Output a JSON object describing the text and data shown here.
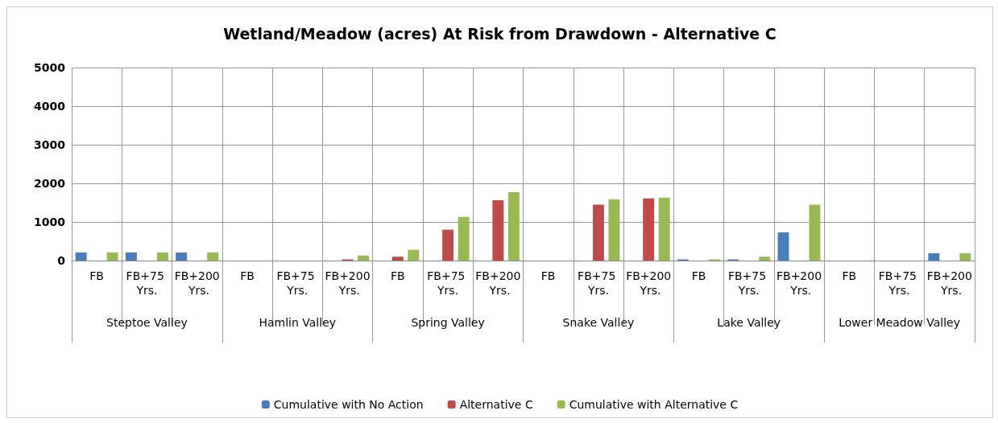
{
  "chart_data": {
    "type": "bar",
    "title": "Wetland/Meadow (acres) At Risk from Drawdown - Alternative C",
    "categories": [
      "FB",
      "FB+75 Yrs.",
      "FB+200 Yrs.",
      "FB",
      "FB+75 Yrs.",
      "FB+200 Yrs.",
      "FB",
      "FB+75 Yrs.",
      "FB+200 Yrs.",
      "FB",
      "FB+75 Yrs.",
      "FB+200 Yrs.",
      "FB",
      "FB+75 Yrs.",
      "FB+200 Yrs.",
      "FB",
      "FB+75 Yrs.",
      "FB+200 Yrs."
    ],
    "annotations": [
      "Steptoe Valley",
      "Hamlin Valley",
      "Spring Valley",
      "Snake Valley",
      "Lake Valley",
      "Lower Meadow Valley"
    ],
    "series": [
      {
        "name": "Cumulative with No Action",
        "color": "#4a7ebb",
        "values": [
          210,
          210,
          210,
          0,
          0,
          0,
          0,
          0,
          0,
          0,
          0,
          0,
          30,
          30,
          730,
          0,
          0,
          190
        ]
      },
      {
        "name": "Alternative C",
        "color": "#be4b48",
        "values": [
          0,
          0,
          0,
          0,
          0,
          30,
          100,
          800,
          1560,
          0,
          1450,
          1610,
          0,
          0,
          0,
          0,
          0,
          0
        ]
      },
      {
        "name": "Cumulative with Alternative C",
        "color": "#98b954",
        "values": [
          210,
          210,
          210,
          0,
          0,
          130,
          280,
          1130,
          1770,
          0,
          1590,
          1630,
          30,
          100,
          1450,
          0,
          0,
          190
        ]
      }
    ],
    "ylim": [
      0,
      5000
    ],
    "yticks": [
      0,
      1000,
      2000,
      3000,
      4000,
      5000
    ],
    "grid": true,
    "legend": "bottom"
  }
}
